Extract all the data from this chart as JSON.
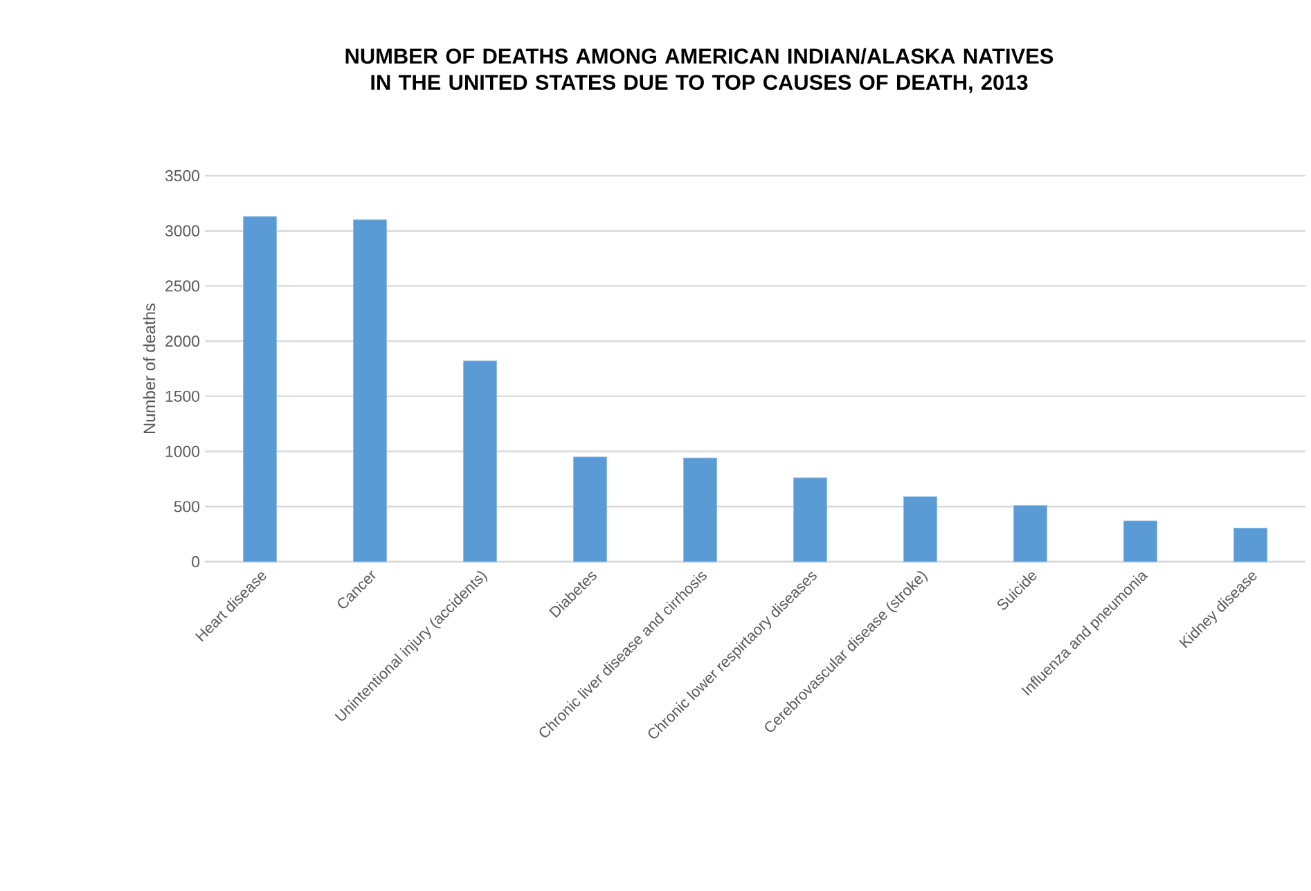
{
  "chart_data": {
    "type": "bar",
    "title": "NUMBER OF DEATHS AMONG AMERICAN INDIAN/ALASKA NATIVES IN THE UNITED STATES DUE TO TOP CAUSES OF DEATH, 2013",
    "ylabel": "Number of deaths",
    "categories": [
      "Heart disease",
      "Cancer",
      "Unintentional injury (accidents)",
      "Diabetes",
      "Chronic liver disease and cirrhosis",
      "Chronic lower respirtaory diseases",
      "Cerebrovascular disease (stroke)",
      "Suicide",
      "Influenza and pneumonia",
      "Kidney disease"
    ],
    "values": [
      3130,
      3100,
      1820,
      950,
      940,
      760,
      590,
      510,
      370,
      305
    ],
    "color": "#5b9bd5",
    "ylim": [
      0,
      3500
    ],
    "yticks": [
      0,
      500,
      1000,
      1500,
      2000,
      2500,
      3000,
      3500
    ],
    "grid": "y"
  }
}
